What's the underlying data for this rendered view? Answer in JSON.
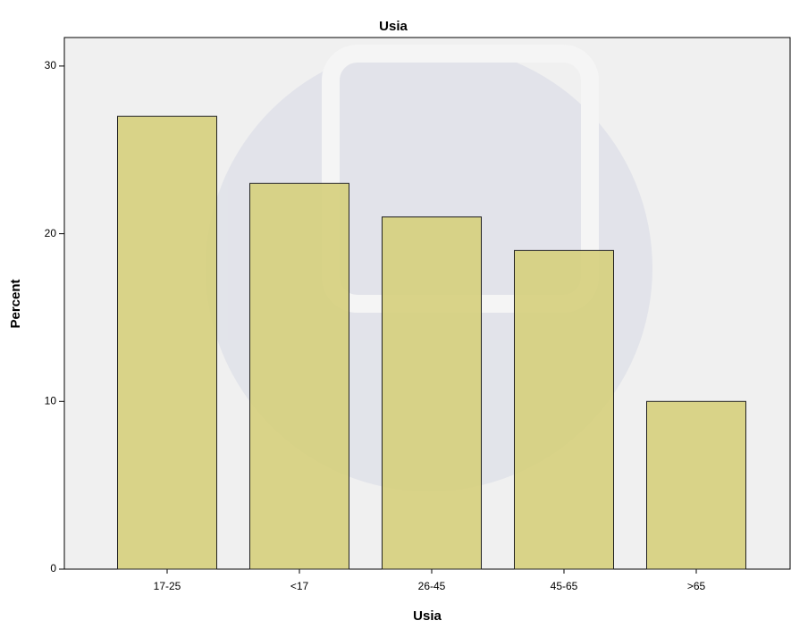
{
  "chart_data": {
    "type": "bar",
    "title": "Usia",
    "x_label": "Usia",
    "y_label": "Percent",
    "categories": [
      "17-25",
      "<17",
      "26-45",
      "45-65",
      ">65"
    ],
    "values": [
      27,
      23,
      21,
      19,
      10
    ],
    "color": "#d6cf7c",
    "ylim": [
      0,
      31.7
    ],
    "yticks": [
      0,
      10,
      20,
      30
    ],
    "grid": false
  }
}
